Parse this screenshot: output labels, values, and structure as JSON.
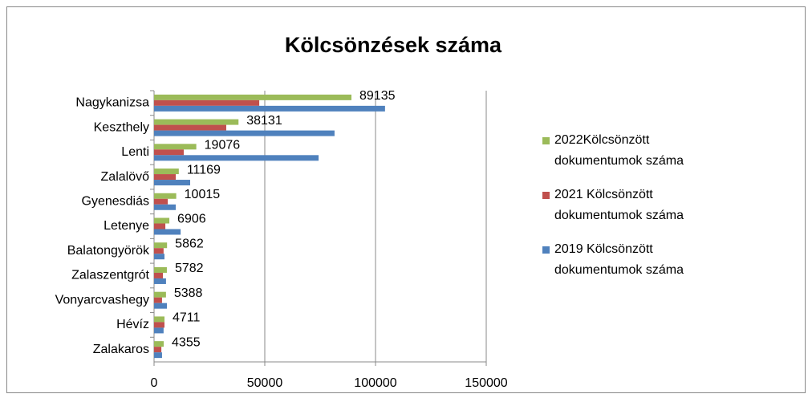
{
  "chart_data": {
    "type": "bar",
    "orientation": "horizontal",
    "title": "Kölcsönzések száma",
    "categories": [
      "Nagykanizsa",
      "Keszthely",
      "Lenti",
      "Zalalövő",
      "Gyenesdiás",
      "Letenye",
      "Balatongyörök",
      "Zalaszentgrót",
      "Vonyarcvashegy",
      "Hévíz",
      "Zalakaros"
    ],
    "series": [
      {
        "name": "2022Kölcsönzött dokumentumok száma",
        "color": "#9bbb59",
        "values": [
          89135,
          38131,
          19076,
          11169,
          10015,
          6906,
          5862,
          5782,
          5388,
          4711,
          4355
        ],
        "data_labels": true
      },
      {
        "name": "2021 Kölcsönzött dokumentumok száma",
        "color": "#c0504d",
        "values": [
          47500,
          32600,
          13400,
          9800,
          6200,
          5100,
          4300,
          4000,
          3600,
          4700,
          3300
        ]
      },
      {
        "name": "2019 Kölcsönzött dokumentumok száma",
        "color": "#4f81bd",
        "values": [
          104300,
          81500,
          74300,
          16300,
          9800,
          12000,
          4700,
          5400,
          5800,
          4300,
          3600
        ]
      }
    ],
    "xlim": [
      0,
      150000
    ],
    "xticks": [
      0,
      50000,
      100000,
      150000
    ],
    "grid": true,
    "legend": "right"
  }
}
